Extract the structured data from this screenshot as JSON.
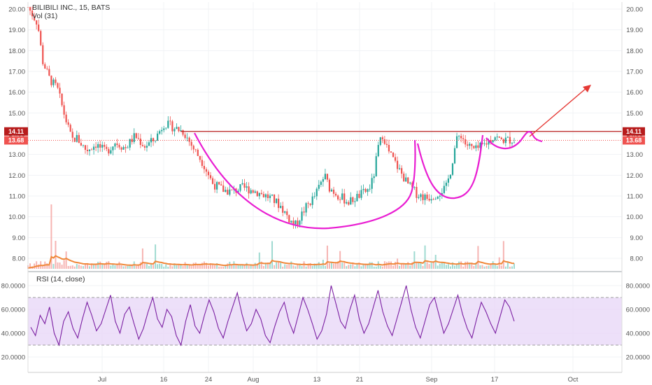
{
  "chart_data": [
    {
      "type": "candlestick",
      "title": "BILIBILI INC., 15, BATS",
      "volume_label": "Vol (31)",
      "ylim": [
        7.5,
        20.3
      ],
      "y_ticks": [
        "20.00",
        "19.00",
        "18.00",
        "17.00",
        "16.00",
        "15.00",
        "14.00",
        "13.00",
        "12.00",
        "11.00",
        "10.00",
        "9.00",
        "8.00"
      ],
      "x_ticks": [
        "Jul",
        "16",
        "24",
        "Aug",
        "13",
        "21",
        "Sep",
        "17",
        "Oct"
      ],
      "price_badges": [
        {
          "label": "14.11",
          "value": 14.11,
          "color": "#b71c1c"
        },
        {
          "label": "13.68",
          "value": 13.68,
          "color": "#ef5350"
        }
      ],
      "price_path": [
        [
          0,
          20.1
        ],
        [
          0.02,
          19.3
        ],
        [
          0.03,
          17.5
        ],
        [
          0.045,
          16.6
        ],
        [
          0.06,
          16.2
        ],
        [
          0.075,
          14.9
        ],
        [
          0.09,
          13.7
        ],
        [
          0.1,
          13.8
        ],
        [
          0.12,
          13.2
        ],
        [
          0.14,
          13.5
        ],
        [
          0.16,
          13.1
        ],
        [
          0.18,
          13.6
        ],
        [
          0.2,
          13.3
        ],
        [
          0.22,
          13.9
        ],
        [
          0.24,
          13.4
        ],
        [
          0.26,
          13.7
        ],
        [
          0.28,
          14.5
        ],
        [
          0.3,
          14.3
        ],
        [
          0.32,
          14.1
        ],
        [
          0.34,
          13.3
        ],
        [
          0.36,
          12.6
        ],
        [
          0.38,
          11.6
        ],
        [
          0.4,
          11.3
        ],
        [
          0.42,
          11.2
        ],
        [
          0.44,
          11.4
        ],
        [
          0.46,
          11.3
        ],
        [
          0.48,
          11.1
        ],
        [
          0.5,
          10.9
        ],
        [
          0.52,
          10.5
        ],
        [
          0.54,
          9.8
        ],
        [
          0.55,
          9.6
        ],
        [
          0.57,
          10.4
        ],
        [
          0.59,
          11.0
        ],
        [
          0.61,
          12.0
        ],
        [
          0.62,
          11.4
        ],
        [
          0.64,
          11.0
        ],
        [
          0.66,
          10.7
        ],
        [
          0.68,
          11.0
        ],
        [
          0.7,
          11.3
        ],
        [
          0.71,
          11.8
        ],
        [
          0.72,
          13.3
        ],
        [
          0.73,
          14.0
        ],
        [
          0.74,
          13.2
        ],
        [
          0.76,
          12.4
        ],
        [
          0.78,
          11.6
        ],
        [
          0.8,
          11.1
        ],
        [
          0.82,
          10.9
        ],
        [
          0.84,
          11.1
        ],
        [
          0.86,
          11.4
        ],
        [
          0.87,
          12.3
        ],
        [
          0.88,
          13.6
        ],
        [
          0.89,
          14.0
        ],
        [
          0.9,
          13.5
        ],
        [
          0.92,
          13.2
        ],
        [
          0.94,
          13.5
        ],
        [
          0.96,
          13.9
        ],
        [
          0.97,
          13.7
        ]
      ],
      "annotations": [
        {
          "type": "resistance-line",
          "value": 14.11
        },
        {
          "type": "cup-with-handle",
          "shape": "freehand"
        },
        {
          "type": "breakout-arrow",
          "direction": "up"
        }
      ]
    },
    {
      "type": "line",
      "title": "RSI (14, close)",
      "ylim": [
        10,
        90
      ],
      "y_ticks": [
        "80.0000",
        "60.0000",
        "40.0000",
        "20.0000"
      ],
      "band": [
        30,
        70
      ],
      "series": [
        {
          "name": "RSI",
          "values": [
            45,
            38,
            55,
            48,
            62,
            40,
            30,
            50,
            58,
            44,
            36,
            52,
            66,
            55,
            42,
            48,
            60,
            72,
            50,
            40,
            56,
            62,
            48,
            35,
            44,
            58,
            70,
            52,
            45,
            60,
            54,
            38,
            30,
            50,
            64,
            46,
            40,
            55,
            68,
            58,
            44,
            36,
            50,
            62,
            74,
            56,
            42,
            48,
            60,
            52,
            38,
            32,
            46,
            58,
            66,
            50,
            40,
            55,
            70,
            60,
            48,
            35,
            42,
            56,
            80,
            65,
            50,
            44,
            60,
            72,
            52,
            40,
            48,
            62,
            76,
            58,
            46,
            38,
            52,
            66,
            80,
            60,
            45,
            36,
            50,
            64,
            70,
            55,
            40,
            48,
            60,
            72,
            56,
            44,
            36,
            52,
            66,
            58,
            48,
            40,
            54,
            68,
            62,
            50
          ]
        }
      ]
    }
  ]
}
